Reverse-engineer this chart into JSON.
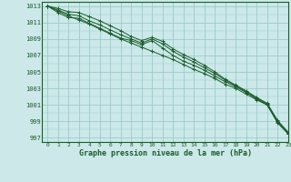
{
  "background_color": "#cce8e8",
  "grid_color": "#99cccc",
  "line_color": "#1a5c2a",
  "title": "Graphe pression niveau de la mer (hPa)",
  "xlim": [
    -0.5,
    23
  ],
  "ylim": [
    996.5,
    1013.5
  ],
  "yticks": [
    997,
    999,
    1001,
    1003,
    1005,
    1007,
    1009,
    1011,
    1013
  ],
  "xticks": [
    0,
    1,
    2,
    3,
    4,
    5,
    6,
    7,
    8,
    9,
    10,
    11,
    12,
    13,
    14,
    15,
    16,
    17,
    18,
    19,
    20,
    21,
    22,
    23
  ],
  "series": [
    [
      1013.0,
      1012.4,
      1011.8,
      1011.3,
      1010.8,
      1010.2,
      1009.6,
      1009.0,
      1008.5,
      1008.0,
      1007.5,
      1007.0,
      1006.5,
      1005.9,
      1005.3,
      1004.8,
      1004.2,
      1003.5,
      1003.0,
      1002.3,
      1001.6,
      1001.0,
      998.8,
      997.5
    ],
    [
      1013.0,
      1012.2,
      1011.6,
      1011.5,
      1010.9,
      1010.3,
      1009.7,
      1009.1,
      1008.8,
      1008.3,
      1008.8,
      1007.9,
      1007.0,
      1006.3,
      1005.8,
      1005.2,
      1004.5,
      1003.8,
      1003.2,
      1002.5,
      1001.7,
      1001.0,
      998.9,
      997.5
    ],
    [
      1013.0,
      1012.5,
      1012.0,
      1011.8,
      1011.2,
      1010.7,
      1010.1,
      1009.5,
      1009.0,
      1008.5,
      1009.0,
      1008.4,
      1007.5,
      1006.8,
      1006.2,
      1005.5,
      1004.8,
      1004.0,
      1003.3,
      1002.6,
      1001.8,
      1001.1,
      999.0,
      997.6
    ],
    [
      1013.0,
      1012.7,
      1012.3,
      1012.2,
      1011.7,
      1011.2,
      1010.6,
      1010.0,
      1009.3,
      1008.8,
      1009.2,
      1008.7,
      1007.8,
      1007.1,
      1006.5,
      1005.8,
      1005.0,
      1004.1,
      1003.4,
      1002.7,
      1001.9,
      1001.2,
      999.1,
      997.7
    ]
  ]
}
